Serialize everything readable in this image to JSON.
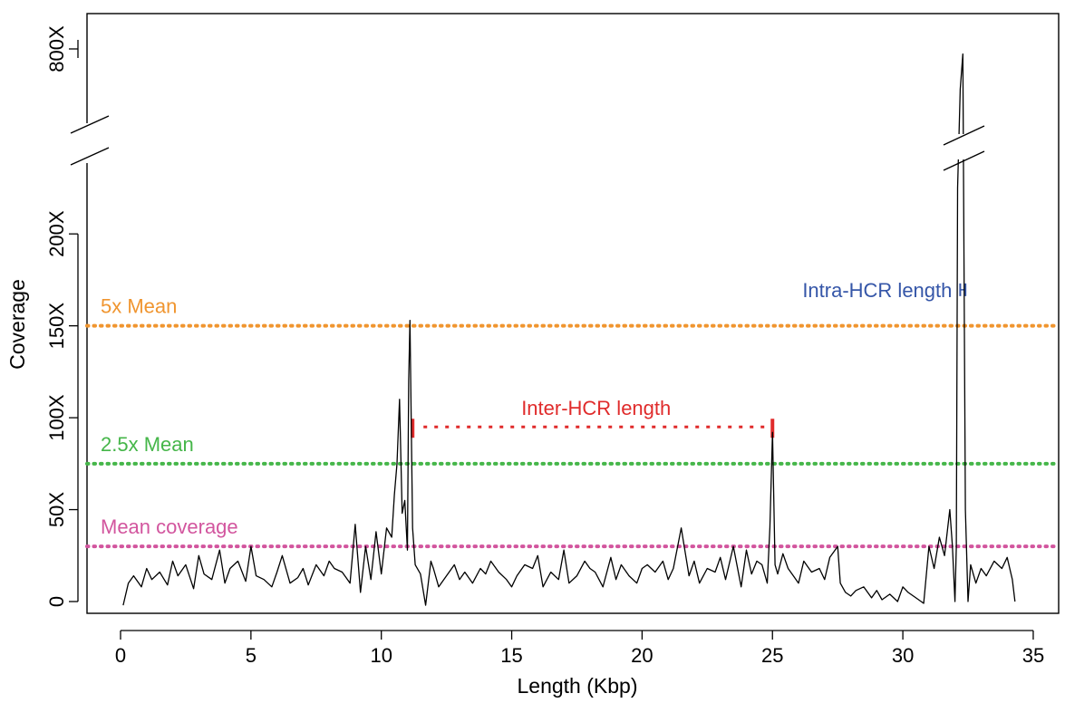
{
  "chart_data": {
    "type": "line",
    "xlabel": "Length (Kbp)",
    "ylabel": "Coverage",
    "xlim": [
      -1.3,
      35.8
    ],
    "x_ticks": [
      0,
      5,
      10,
      15,
      20,
      25,
      30,
      35
    ],
    "x_tick_labels": [
      "0",
      "5",
      "10",
      "15",
      "20",
      "25",
      "30",
      "35"
    ],
    "y_lower_range": [
      -5,
      205
    ],
    "y_upper_ticks": [
      800
    ],
    "y_ticks": [
      0,
      50,
      100,
      150,
      200
    ],
    "y_tick_labels": [
      "0",
      "50X",
      "100X",
      "150X",
      "200X"
    ],
    "y_upper_tick_labels": [
      "800X"
    ],
    "axis_break": true,
    "grid": false,
    "reference_lines": [
      {
        "label": "5x Mean",
        "y": 150,
        "color": "#f0952f"
      },
      {
        "label": "2.5x Mean",
        "y": 75,
        "color": "#45b649"
      },
      {
        "label": "Mean coverage",
        "y": 30,
        "color": "#d2559e"
      }
    ],
    "annotations": [
      {
        "label": "Inter-HCR length",
        "x_start": 11.2,
        "x_end": 25.0,
        "y": 95,
        "color": "#e02b2b"
      },
      {
        "label": "Intra-HCR length",
        "x_start": 32.2,
        "x_end": 32.4,
        "y": 177,
        "color": "#3556a8"
      }
    ],
    "series": [
      {
        "color": "#000000",
        "x": [
          0.1,
          0.3,
          0.5,
          0.8,
          1.0,
          1.2,
          1.5,
          1.8,
          2.0,
          2.2,
          2.5,
          2.8,
          3.0,
          3.2,
          3.5,
          3.8,
          4.0,
          4.2,
          4.5,
          4.8,
          5.0,
          5.2,
          5.5,
          5.8,
          6.0,
          6.2,
          6.5,
          6.8,
          7.0,
          7.2,
          7.5,
          7.8,
          8.0,
          8.2,
          8.5,
          8.8,
          9.0,
          9.2,
          9.4,
          9.6,
          9.8,
          10.0,
          10.2,
          10.4,
          10.5,
          10.6,
          10.7,
          10.8,
          10.9,
          11.0,
          11.05,
          11.1,
          11.2,
          11.3,
          11.5,
          11.7,
          11.9,
          12.0,
          12.2,
          12.5,
          12.8,
          13.0,
          13.2,
          13.5,
          13.8,
          14.0,
          14.2,
          14.5,
          14.8,
          15.0,
          15.2,
          15.5,
          15.8,
          16.0,
          16.2,
          16.5,
          16.8,
          17.0,
          17.2,
          17.5,
          17.8,
          18.0,
          18.2,
          18.5,
          18.8,
          19.0,
          19.2,
          19.5,
          19.8,
          20.0,
          20.2,
          20.5,
          20.8,
          21.0,
          21.2,
          21.5,
          21.8,
          22.0,
          22.2,
          22.5,
          22.8,
          23.0,
          23.2,
          23.5,
          23.8,
          24.0,
          24.2,
          24.4,
          24.6,
          24.8,
          24.9,
          25.0,
          25.1,
          25.2,
          25.4,
          25.6,
          25.8,
          26.0,
          26.2,
          26.5,
          26.8,
          27.0,
          27.2,
          27.4,
          27.5,
          27.6,
          27.8,
          28.0,
          28.2,
          28.5,
          28.8,
          29.0,
          29.2,
          29.5,
          29.8,
          30.0,
          30.2,
          30.5,
          30.8,
          31.0,
          31.2,
          31.4,
          31.6,
          31.8,
          31.9,
          32.0,
          32.05,
          32.1,
          32.2,
          32.3,
          32.4,
          32.5,
          32.6,
          32.8,
          33.0,
          33.2,
          33.5,
          33.8,
          34.0,
          34.2,
          34.3
        ],
        "y": [
          -2,
          10,
          14,
          8,
          18,
          12,
          16,
          9,
          22,
          14,
          20,
          7,
          25,
          15,
          12,
          28,
          10,
          18,
          22,
          11,
          30,
          14,
          12,
          8,
          16,
          25,
          10,
          13,
          18,
          9,
          20,
          14,
          22,
          18,
          16,
          10,
          42,
          5,
          30,
          12,
          38,
          15,
          40,
          35,
          58,
          75,
          110,
          48,
          55,
          28,
          120,
          153,
          40,
          20,
          15,
          -2,
          22,
          18,
          8,
          14,
          20,
          12,
          16,
          10,
          18,
          15,
          22,
          16,
          12,
          8,
          14,
          20,
          18,
          25,
          8,
          16,
          12,
          28,
          10,
          14,
          22,
          18,
          16,
          8,
          24,
          12,
          20,
          14,
          10,
          18,
          20,
          16,
          22,
          12,
          18,
          40,
          14,
          22,
          10,
          18,
          16,
          24,
          12,
          30,
          8,
          28,
          15,
          22,
          20,
          10,
          40,
          92,
          20,
          15,
          26,
          18,
          14,
          10,
          22,
          16,
          18,
          12,
          24,
          28,
          30,
          10,
          5,
          3,
          6,
          8,
          2,
          6,
          1,
          4,
          0,
          8,
          5,
          2,
          -1,
          30,
          18,
          35,
          25,
          50,
          30,
          0,
          30,
          225,
          560,
          770,
          50,
          0,
          20,
          10,
          18,
          14,
          22,
          18,
          24,
          12,
          0
        ]
      }
    ]
  }
}
